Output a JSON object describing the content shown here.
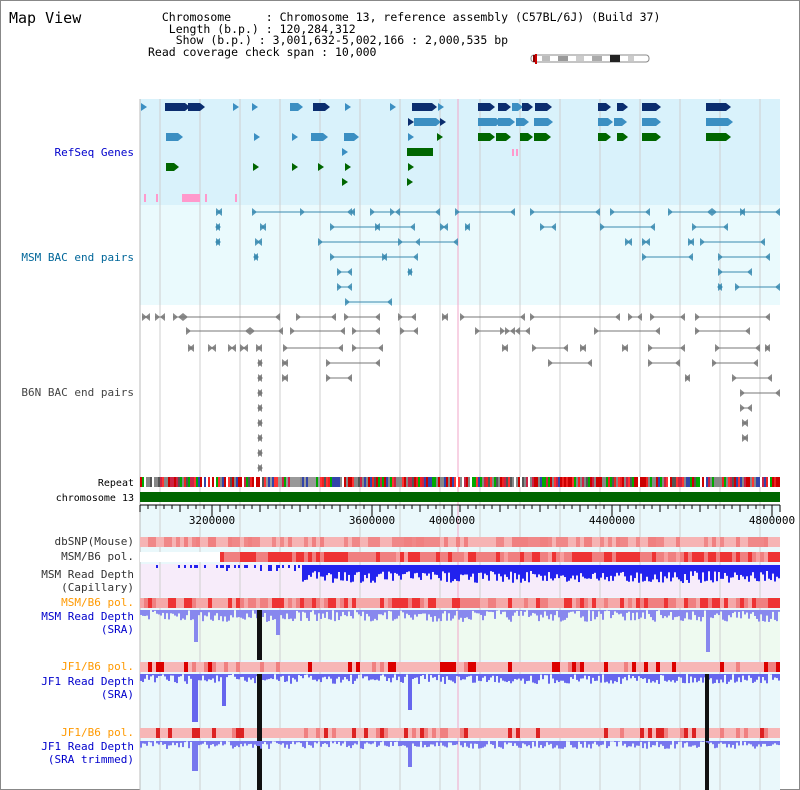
{
  "header": {
    "title": "Map View",
    "chromosome_key": "Chromosome     ",
    "chromosome_value": ": Chromosome 13, reference assembly (C57BL/6J) (Build 37)",
    "length_key": " Length (b.p.) ",
    "length_value": ": 120,284,312",
    "show_key": "  Show (b.p.) ",
    "show_value": ": 3,001,632-5,002,166 : 2,000,535 bp",
    "coverage_key": "Read coverage check span ",
    "coverage_value": ": 10,000"
  },
  "tracks": {
    "refseq": {
      "label": "RefSeq Genes",
      "color": "#0000cc"
    },
    "msm_bac": {
      "label": "MSM BAC end pairs",
      "color": "#006699"
    },
    "b6n_bac": {
      "label": "B6N BAC end pairs",
      "color": "#444444"
    },
    "repeat": {
      "label": "Repeat"
    },
    "chromosome": {
      "label": "chromosome 13"
    },
    "dbsnp": {
      "label": "dbSNP(Mouse)"
    },
    "msm_b6_pol_1": {
      "label": "MSM/B6 pol."
    },
    "msm_read_depth_cap": {
      "line1": "MSM Read Depth",
      "line2": "(Capillary)"
    },
    "msm_b6_pol_2": {
      "label": "MSM/B6 pol.",
      "color": "#ff9900"
    },
    "msm_read_depth_sra": {
      "line1": "MSM Read Depth",
      "line2": "(SRA)",
      "color": "#0000cc"
    },
    "jf1_b6_pol_1": {
      "label": "JF1/B6 pol.",
      "color": "#ff9900"
    },
    "jf1_read_depth_sra": {
      "line1": "JF1 Read Depth",
      "line2": "(SRA)",
      "color": "#0000cc"
    },
    "jf1_b6_pol_2": {
      "label": "JF1/B6 pol.",
      "color": "#ff9900"
    },
    "jf1_read_depth_trim": {
      "line1": "JF1 Read Depth",
      "line2": "(SRA trimmed)",
      "color": "#0000cc"
    }
  },
  "ruler": {
    "ticks": [
      "3200000",
      "3600000",
      "4000000",
      "4400000",
      "4800000"
    ]
  },
  "colors": {
    "refseq_bg": "#d9f2fb",
    "bac_bg": "#eafafd",
    "chrom_bar": "#006600",
    "depth_blue": "#5555ee",
    "pol_red": "#ee3333"
  }
}
